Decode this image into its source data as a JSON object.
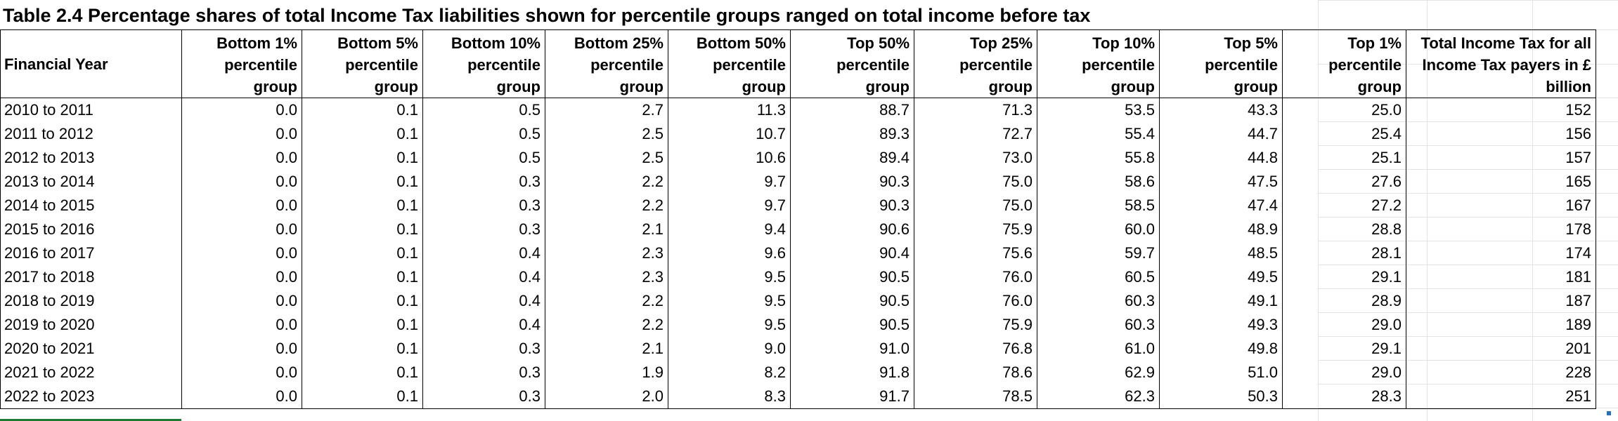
{
  "title": "Table 2.4 Percentage shares of total Income Tax liabilities shown for percentile groups ranged on total income before tax",
  "columns": [
    "Financial Year",
    "Bottom 1% percentile group",
    "Bottom 5% percentile group",
    "Bottom 10% percentile group",
    "Bottom 25% percentile group",
    "Bottom 50% percentile group",
    "Top 50% percentile group",
    "Top 25% percentile group",
    "Top 10% percentile group",
    "Top 5% percentile group",
    "Top 1% percentile group",
    "Total Income Tax for all Income Tax payers in £ billion"
  ],
  "rows": [
    [
      "2010 to 2011",
      "0.0",
      "0.1",
      "0.5",
      "2.7",
      "11.3",
      "88.7",
      "71.3",
      "53.5",
      "43.3",
      "25.0",
      "152"
    ],
    [
      "2011 to 2012",
      "0.0",
      "0.1",
      "0.5",
      "2.5",
      "10.7",
      "89.3",
      "72.7",
      "55.4",
      "44.7",
      "25.4",
      "156"
    ],
    [
      "2012 to 2013",
      "0.0",
      "0.1",
      "0.5",
      "2.5",
      "10.6",
      "89.4",
      "73.0",
      "55.8",
      "44.8",
      "25.1",
      "157"
    ],
    [
      "2013 to 2014",
      "0.0",
      "0.1",
      "0.3",
      "2.2",
      "9.7",
      "90.3",
      "75.0",
      "58.6",
      "47.5",
      "27.6",
      "165"
    ],
    [
      "2014 to 2015",
      "0.0",
      "0.1",
      "0.3",
      "2.2",
      "9.7",
      "90.3",
      "75.0",
      "58.5",
      "47.4",
      "27.2",
      "167"
    ],
    [
      "2015 to 2016",
      "0.0",
      "0.1",
      "0.3",
      "2.1",
      "9.4",
      "90.6",
      "75.9",
      "60.0",
      "48.9",
      "28.8",
      "178"
    ],
    [
      "2016 to 2017",
      "0.0",
      "0.1",
      "0.4",
      "2.3",
      "9.6",
      "90.4",
      "75.6",
      "59.7",
      "48.5",
      "28.1",
      "174"
    ],
    [
      "2017 to 2018",
      "0.0",
      "0.1",
      "0.4",
      "2.3",
      "9.5",
      "90.5",
      "76.0",
      "60.5",
      "49.5",
      "29.1",
      "181"
    ],
    [
      "2018 to 2019",
      "0.0",
      "0.1",
      "0.4",
      "2.2",
      "9.5",
      "90.5",
      "76.0",
      "60.3",
      "49.1",
      "28.9",
      "187"
    ],
    [
      "2019 to 2020",
      "0.0",
      "0.1",
      "0.4",
      "2.2",
      "9.5",
      "90.5",
      "75.9",
      "60.3",
      "49.3",
      "29.0",
      "189"
    ],
    [
      "2020 to 2021",
      "0.0",
      "0.1",
      "0.3",
      "2.1",
      "9.0",
      "91.0",
      "76.8",
      "61.0",
      "49.8",
      "29.1",
      "201"
    ],
    [
      "2021 to 2022",
      "0.0",
      "0.1",
      "0.3",
      "1.9",
      "8.2",
      "91.8",
      "78.6",
      "62.9",
      "51.0",
      "29.0",
      "228"
    ],
    [
      "2022 to 2023",
      "0.0",
      "0.1",
      "0.3",
      "2.0",
      "8.3",
      "91.7",
      "78.5",
      "62.3",
      "50.3",
      "28.3",
      "251"
    ]
  ]
}
